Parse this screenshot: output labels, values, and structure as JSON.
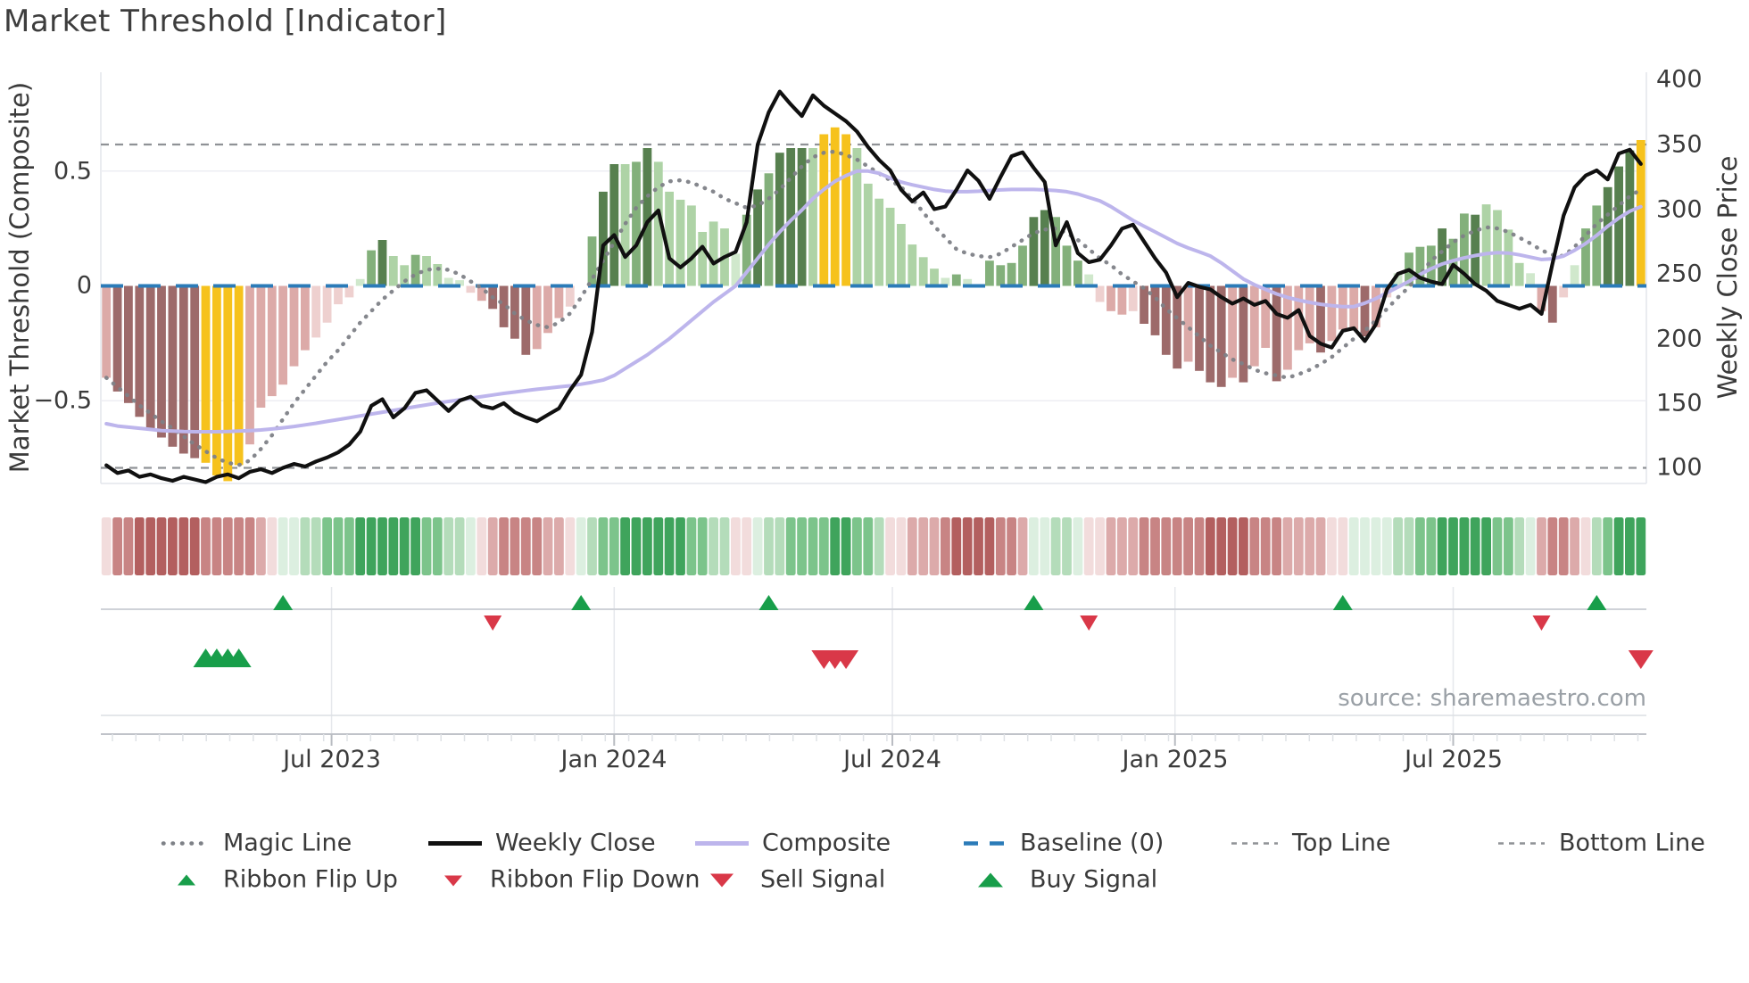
{
  "title": "Market Threshold [Indicator]",
  "source": "source: sharemaestro.com",
  "axes": {
    "left": {
      "label": "Market Threshold (Composite)",
      "ticks": [
        "0.5",
        "0",
        "−0.5"
      ]
    },
    "right": {
      "label": "Weekly Close Price",
      "ticks": [
        "400",
        "350",
        "300",
        "250",
        "200",
        "150",
        "100"
      ]
    },
    "x": {
      "ticks": [
        "Jul 2023",
        "Jan 2024",
        "Jul 2024",
        "Jan 2025",
        "Jul 2025"
      ]
    }
  },
  "legend": {
    "row1": [
      {
        "label": "Magic Line",
        "kind": "dotted-gray-line"
      },
      {
        "label": "Weekly Close",
        "kind": "solid-black-line"
      },
      {
        "label": "Composite",
        "kind": "solid-lavender-line"
      },
      {
        "label": "Baseline (0)",
        "kind": "dashed-blue-line"
      },
      {
        "label": "Top Line",
        "kind": "dashed-gray-line"
      },
      {
        "label": "Bottom Line",
        "kind": "dashed-gray-line"
      }
    ],
    "row2": [
      {
        "label": "Ribbon Flip Up",
        "kind": "small-green-up-triangle"
      },
      {
        "label": "Ribbon Flip Down",
        "kind": "small-red-down-triangle"
      },
      {
        "label": "Sell Signal",
        "kind": "red-down-triangle"
      },
      {
        "label": "Buy Signal",
        "kind": "green-up-triangle"
      }
    ]
  },
  "colors": {
    "bar": {
      "r3": "#9d6a6a",
      "r2": "#dcaaa8",
      "r1": "#eed0cf",
      "y": "#f6c21d",
      "g4": "#57804f",
      "g3": "#83b07b",
      "g2": "#aed3a6",
      "g1": "#d0e8cc"
    },
    "ribbon": {
      "R3": "#b35f5f",
      "R2": "#c88484",
      "R1": "#dcaaaa",
      "R0": "#f2dcdc",
      "G0": "#dcefe0",
      "G1": "#b4dcba",
      "G2": "#7cc48b",
      "G3": "#3fa45c"
    },
    "weekly_close": "#101010",
    "composite": "#bdb5ec",
    "magic_line": "#7e8187",
    "baseline": "#2b7bb8",
    "top_bottom_line": "#8f9296",
    "signal_up": "#189e4a",
    "signal_down": "#d93848"
  },
  "chart_data": {
    "type": "mixed",
    "title": "Market Threshold [Indicator]",
    "x_unit": "weekly",
    "x_range_visible": [
      "Feb 2023",
      "Oct 2025"
    ],
    "x_tick_labels": [
      "Jul 2023",
      "Jan 2024",
      "Jul 2024",
      "Jan 2025",
      "Jul 2025"
    ],
    "x_tick_bar_index": [
      20.4,
      46.0,
      71.2,
      96.8,
      122.0
    ],
    "left_axis": {
      "label": "Market Threshold (Composite)",
      "ticks": [
        0.5,
        0,
        -0.5
      ],
      "range": [
        -0.9,
        0.93
      ]
    },
    "right_axis": {
      "label": "Weekly Close Price",
      "ticks": [
        400,
        350,
        300,
        250,
        200,
        150,
        100
      ],
      "range": [
        80,
        408
      ]
    },
    "baseline": 0,
    "top_line_price": 350,
    "bottom_line_price": 100,
    "grid": "horizontal-only",
    "legend_position": "bottom",
    "bars": {
      "name": "Market Threshold histogram (Composite)",
      "values": [
        -0.4,
        -0.46,
        -0.51,
        -0.57,
        -0.62,
        -0.66,
        -0.7,
        -0.73,
        -0.75,
        -0.77,
        -0.825,
        -0.85,
        -0.78,
        -0.69,
        -0.53,
        -0.48,
        -0.43,
        -0.35,
        -0.28,
        -0.225,
        -0.16,
        -0.08,
        -0.05,
        0.03,
        0.155,
        0.2,
        0.13,
        0.09,
        0.135,
        0.13,
        0.095,
        0.035,
        0.025,
        -0.03,
        -0.065,
        -0.1,
        -0.18,
        -0.23,
        -0.3,
        -0.275,
        -0.205,
        -0.14,
        -0.09,
        0,
        0.215,
        0.41,
        0.53,
        0.53,
        0.54,
        0.6,
        0.54,
        0.41,
        0.375,
        0.35,
        0.235,
        0.28,
        0.25,
        0.14,
        0.31,
        0.42,
        0.49,
        0.58,
        0.6,
        0.6,
        0.6,
        0.66,
        0.69,
        0.66,
        0.6,
        0.445,
        0.38,
        0.34,
        0.27,
        0.18,
        0.125,
        0.075,
        0.035,
        0.05,
        0.03,
        0,
        0.11,
        0.09,
        0.1,
        0.175,
        0.3,
        0.33,
        0.3,
        0.175,
        0.11,
        0.05,
        -0.07,
        -0.11,
        -0.125,
        -0.11,
        -0.165,
        -0.215,
        -0.3,
        -0.36,
        -0.33,
        -0.37,
        -0.42,
        -0.44,
        -0.4,
        -0.42,
        -0.35,
        -0.27,
        -0.415,
        -0.365,
        -0.28,
        -0.25,
        -0.29,
        -0.24,
        -0.19,
        -0.19,
        -0.22,
        -0.18,
        -0.05,
        0.055,
        0.145,
        0.17,
        0.175,
        0.25,
        0.205,
        0.315,
        0.31,
        0.355,
        0.33,
        0.245,
        0.1,
        0.055,
        -0.11,
        -0.16,
        -0.05,
        0.09,
        0.25,
        0.35,
        0.43,
        0.52,
        0.59,
        0.635
      ],
      "colors": [
        "r2",
        "r3",
        "r3",
        "r3",
        "r3",
        "r3",
        "r3",
        "r3",
        "r3",
        "y",
        "y",
        "y",
        "y",
        "r2",
        "r2",
        "r2",
        "r2",
        "r2",
        "r2",
        "r1",
        "r1",
        "r1",
        "r1",
        "g1",
        "g3",
        "g4",
        "g2",
        "g2",
        "g3",
        "g2",
        "g2",
        "g1",
        "g1",
        "r1",
        "r2",
        "r3",
        "r3",
        "r3",
        "r3",
        "r2",
        "r2",
        "r2",
        "r1",
        "n",
        "g3",
        "g4",
        "g4",
        "g2",
        "g3",
        "g4",
        "g2",
        "g2",
        "g2",
        "g2",
        "g2",
        "g2",
        "g2",
        "g1",
        "g3",
        "g4",
        "g3",
        "g4",
        "g4",
        "g4",
        "g2",
        "y",
        "y",
        "y",
        "g2",
        "g2",
        "g2",
        "g2",
        "g2",
        "g2",
        "g2",
        "g2",
        "g1",
        "g3",
        "g1",
        "n",
        "g3",
        "g3",
        "g3",
        "g3",
        "g4",
        "g4",
        "g3",
        "g3",
        "g3",
        "g1",
        "r1",
        "r2",
        "r2",
        "r1",
        "r3",
        "r3",
        "r3",
        "r3",
        "r2",
        "r3",
        "r3",
        "r3",
        "r2",
        "r3",
        "r2",
        "r2",
        "r3",
        "r2",
        "r2",
        "r2",
        "r3",
        "r2",
        "r2",
        "r2",
        "r3",
        "r2",
        "r1",
        "g1",
        "g3",
        "g3",
        "g3",
        "g4",
        "g3",
        "g3",
        "g4",
        "g2",
        "g2",
        "g2",
        "g2",
        "g1",
        "r2",
        "r3",
        "r1",
        "g1",
        "g3",
        "g3",
        "g4",
        "g4",
        "g4",
        "y"
      ]
    },
    "weekly_close": [
      102,
      96,
      98,
      93,
      95,
      92,
      90,
      93,
      91,
      89,
      93,
      95,
      92,
      97,
      99,
      96,
      100,
      103,
      101,
      105,
      108,
      112,
      118,
      128,
      148,
      153,
      139,
      146,
      158,
      160,
      152,
      144,
      152,
      155,
      148,
      146,
      150,
      143,
      139,
      136,
      141,
      146,
      160,
      172,
      205,
      272,
      280,
      263,
      272,
      290,
      299,
      262,
      255,
      262,
      271,
      258,
      263,
      267,
      290,
      350,
      375,
      391,
      381,
      372,
      388,
      380,
      374,
      368,
      360,
      348,
      338,
      330,
      315,
      306,
      313,
      300,
      302,
      315,
      330,
      322,
      308,
      325,
      341,
      344,
      332,
      321,
      272,
      290,
      266,
      259,
      261,
      272,
      285,
      288,
      275,
      262,
      251,
      232,
      243,
      240,
      238,
      232,
      227,
      231,
      226,
      229,
      219,
      216,
      222,
      202,
      196,
      193,
      206,
      208,
      198,
      211,
      238,
      250,
      253,
      247,
      244,
      242,
      257,
      250,
      242,
      237,
      229,
      226,
      223,
      226,
      219,
      258,
      295,
      317,
      326,
      330,
      323,
      343,
      346,
      335
    ],
    "composite": [
      -0.6,
      -0.61,
      -0.615,
      -0.62,
      -0.625,
      -0.63,
      -0.632,
      -0.634,
      -0.635,
      -0.635,
      -0.635,
      -0.634,
      -0.632,
      -0.63,
      -0.627,
      -0.623,
      -0.618,
      -0.612,
      -0.605,
      -0.598,
      -0.59,
      -0.582,
      -0.574,
      -0.566,
      -0.558,
      -0.55,
      -0.542,
      -0.534,
      -0.526,
      -0.518,
      -0.51,
      -0.503,
      -0.496,
      -0.489,
      -0.482,
      -0.475,
      -0.468,
      -0.462,
      -0.456,
      -0.45,
      -0.445,
      -0.44,
      -0.435,
      -0.428,
      -0.42,
      -0.41,
      -0.39,
      -0.36,
      -0.33,
      -0.3,
      -0.265,
      -0.23,
      -0.19,
      -0.15,
      -0.11,
      -0.07,
      -0.035,
      0.0,
      0.06,
      0.12,
      0.18,
      0.235,
      0.285,
      0.33,
      0.38,
      0.42,
      0.455,
      0.48,
      0.5,
      0.5,
      0.49,
      0.47,
      0.452,
      0.44,
      0.43,
      0.42,
      0.413,
      0.41,
      0.41,
      0.412,
      0.415,
      0.418,
      0.42,
      0.42,
      0.42,
      0.418,
      0.415,
      0.41,
      0.4,
      0.385,
      0.37,
      0.345,
      0.315,
      0.285,
      0.26,
      0.235,
      0.21,
      0.185,
      0.165,
      0.148,
      0.13,
      0.1,
      0.065,
      0.03,
      0.005,
      -0.015,
      -0.035,
      -0.05,
      -0.062,
      -0.072,
      -0.08,
      -0.086,
      -0.09,
      -0.09,
      -0.075,
      -0.055,
      -0.03,
      -0.005,
      0.02,
      0.05,
      0.075,
      0.095,
      0.11,
      0.122,
      0.132,
      0.14,
      0.145,
      0.143,
      0.135,
      0.125,
      0.115,
      0.118,
      0.13,
      0.155,
      0.185,
      0.22,
      0.26,
      0.295,
      0.325,
      0.345
    ],
    "magic_line": [
      -0.4,
      -0.44,
      -0.48,
      -0.52,
      -0.555,
      -0.59,
      -0.62,
      -0.655,
      -0.69,
      -0.72,
      -0.75,
      -0.77,
      -0.78,
      -0.76,
      -0.71,
      -0.65,
      -0.58,
      -0.51,
      -0.45,
      -0.39,
      -0.33,
      -0.28,
      -0.22,
      -0.16,
      -0.11,
      -0.06,
      -0.02,
      0.02,
      0.05,
      0.07,
      0.075,
      0.07,
      0.05,
      0.02,
      -0.01,
      -0.05,
      -0.08,
      -0.12,
      -0.15,
      -0.17,
      -0.18,
      -0.16,
      -0.12,
      -0.05,
      0.03,
      0.11,
      0.19,
      0.27,
      0.34,
      0.39,
      0.43,
      0.455,
      0.46,
      0.45,
      0.43,
      0.41,
      0.38,
      0.36,
      0.34,
      0.35,
      0.38,
      0.42,
      0.47,
      0.52,
      0.56,
      0.58,
      0.585,
      0.57,
      0.55,
      0.52,
      0.49,
      0.46,
      0.43,
      0.38,
      0.32,
      0.26,
      0.21,
      0.16,
      0.14,
      0.13,
      0.125,
      0.14,
      0.17,
      0.2,
      0.23,
      0.245,
      0.25,
      0.23,
      0.2,
      0.16,
      0.12,
      0.09,
      0.05,
      0.02,
      -0.01,
      -0.05,
      -0.1,
      -0.14,
      -0.18,
      -0.22,
      -0.26,
      -0.29,
      -0.32,
      -0.34,
      -0.365,
      -0.38,
      -0.39,
      -0.4,
      -0.385,
      -0.365,
      -0.34,
      -0.31,
      -0.27,
      -0.23,
      -0.195,
      -0.15,
      -0.1,
      -0.05,
      -0.005,
      0.05,
      0.11,
      0.15,
      0.19,
      0.22,
      0.24,
      0.255,
      0.25,
      0.235,
      0.21,
      0.185,
      0.155,
      0.135,
      0.13,
      0.17,
      0.22,
      0.27,
      0.31,
      0.35,
      0.39,
      0.42
    ],
    "ribbon": [
      "R0",
      "R2",
      "R2",
      "R3",
      "R3",
      "R3",
      "R3",
      "R3",
      "R3",
      "R2",
      "R2",
      "R2",
      "R2",
      "R2",
      "R1",
      "R0",
      "G0",
      "G0",
      "G1",
      "G1",
      "G2",
      "G2",
      "G2",
      "G3",
      "G3",
      "G3",
      "G3",
      "G3",
      "G3",
      "G2",
      "G2",
      "G1",
      "G1",
      "G0",
      "R0",
      "R1",
      "R2",
      "R2",
      "R2",
      "R2",
      "R1",
      "R1",
      "R0",
      "G0",
      "G1",
      "G2",
      "G2",
      "G3",
      "G3",
      "G3",
      "G3",
      "G3",
      "G3",
      "G2",
      "G2",
      "G1",
      "G1",
      "R0",
      "R0",
      "G0",
      "G1",
      "G1",
      "G2",
      "G2",
      "G2",
      "G2",
      "G3",
      "G3",
      "G2",
      "G2",
      "G1",
      "R0",
      "R0",
      "R1",
      "R1",
      "R1",
      "R2",
      "R3",
      "R3",
      "R3",
      "R3",
      "R2",
      "R2",
      "R1",
      "G0",
      "G0",
      "G1",
      "G1",
      "G0",
      "R0",
      "R0",
      "R1",
      "R1",
      "R1",
      "R2",
      "R2",
      "R2",
      "R2",
      "R2",
      "R2",
      "R3",
      "R3",
      "R3",
      "R3",
      "R2",
      "R2",
      "R2",
      "R1",
      "R1",
      "R1",
      "R1",
      "R0",
      "R0",
      "G0",
      "G0",
      "G0",
      "G0",
      "G1",
      "G1",
      "G2",
      "G2",
      "G3",
      "G3",
      "G3",
      "G3",
      "G3",
      "G2",
      "G2",
      "G1",
      "G0",
      "R1",
      "R2",
      "R2",
      "R1",
      "R0",
      "G1",
      "G2",
      "G3",
      "G3",
      "G3"
    ],
    "signals": {
      "ribbon_flip_up_index": [
        16,
        43,
        60,
        84,
        112,
        135
      ],
      "ribbon_flip_down_index": [
        35,
        89,
        130
      ],
      "buy_index": [
        9,
        10,
        11,
        12
      ],
      "sell_index": [
        65,
        66,
        67,
        139
      ]
    }
  }
}
